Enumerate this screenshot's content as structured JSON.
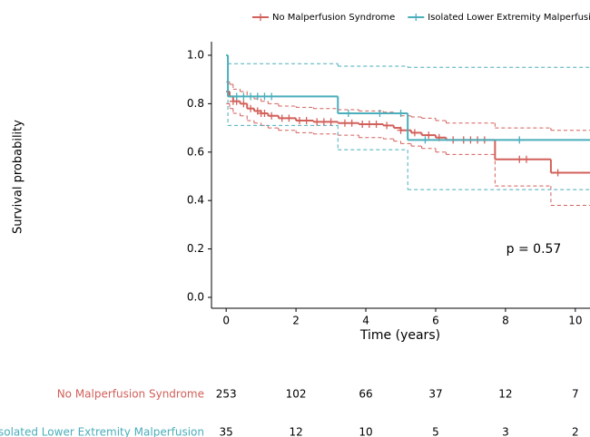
{
  "chart_data": {
    "type": "survival",
    "xlabel": "Time (years)",
    "ylabel": "Survival probability",
    "annotation": "p = 0.57",
    "xlim": [
      -0.42,
      10.42
    ],
    "ylim": [
      -0.045,
      1.056
    ],
    "xticks": [
      0,
      2,
      4,
      6,
      8,
      10
    ],
    "yticks": [
      {
        "value": 0,
        "label": "0.0"
      },
      0.2,
      0.4,
      0.6,
      0.8,
      {
        "value": 1,
        "label": "1.0"
      }
    ],
    "series": [
      {
        "name": "No Malperfusion Syndrome",
        "color": "#d2605a",
        "x": [
          0,
          0.1,
          0.2,
          0.4,
          0.6,
          0.8,
          1.0,
          1.2,
          1.5,
          2.0,
          2.5,
          3.2,
          3.8,
          4.5,
          4.8,
          5.0,
          5.3,
          5.6,
          6.0,
          6.3,
          7.7,
          9.3
        ],
        "values": [
          0.85,
          0.83,
          0.81,
          0.8,
          0.78,
          0.77,
          0.76,
          0.75,
          0.74,
          0.73,
          0.725,
          0.72,
          0.715,
          0.71,
          0.7,
          0.69,
          0.68,
          0.67,
          0.66,
          0.65,
          0.57,
          0.515
        ],
        "ci_upper": [
          0.89,
          0.88,
          0.86,
          0.85,
          0.83,
          0.82,
          0.81,
          0.8,
          0.79,
          0.785,
          0.78,
          0.775,
          0.77,
          0.765,
          0.76,
          0.75,
          0.745,
          0.74,
          0.73,
          0.72,
          0.7,
          0.69
        ],
        "ci_lower": [
          0.8,
          0.78,
          0.76,
          0.75,
          0.73,
          0.72,
          0.71,
          0.7,
          0.69,
          0.68,
          0.675,
          0.67,
          0.66,
          0.655,
          0.645,
          0.635,
          0.625,
          0.615,
          0.6,
          0.59,
          0.46,
          0.38
        ],
        "censor_x": [
          0.2,
          0.3,
          0.5,
          0.7,
          0.9,
          1.0,
          1.1,
          1.3,
          1.6,
          1.8,
          2.1,
          2.3,
          2.6,
          2.8,
          3.0,
          3.4,
          3.6,
          3.9,
          4.1,
          4.3,
          4.6,
          5.0,
          5.4,
          5.8,
          6.1,
          6.5,
          6.8,
          7.0,
          7.2,
          7.4,
          8.4,
          8.6,
          9.5
        ]
      },
      {
        "name": "Isolated Lower Extremity Malperfusion",
        "color": "#4aaebb",
        "x": [
          0,
          0.05,
          3.2,
          5.2
        ],
        "values": [
          1.0,
          0.83,
          0.76,
          0.65
        ],
        "ci_upper": [
          1.0,
          0.965,
          0.955,
          0.95
        ],
        "ci_lower": [
          1.0,
          0.71,
          0.61,
          0.445
        ],
        "censor_x": [
          0.3,
          0.5,
          0.7,
          0.9,
          1.1,
          1.3,
          3.5,
          4.4,
          5.0,
          5.7,
          8.4
        ]
      }
    ],
    "risk_table": [
      {
        "name": "No Malperfusion Syndrome",
        "values": [
          253,
          102,
          66,
          37,
          12,
          7
        ]
      },
      {
        "name": "Isolated Lower Extremity Malperfusion",
        "values": [
          35,
          12,
          10,
          5,
          3,
          2
        ]
      }
    ]
  }
}
